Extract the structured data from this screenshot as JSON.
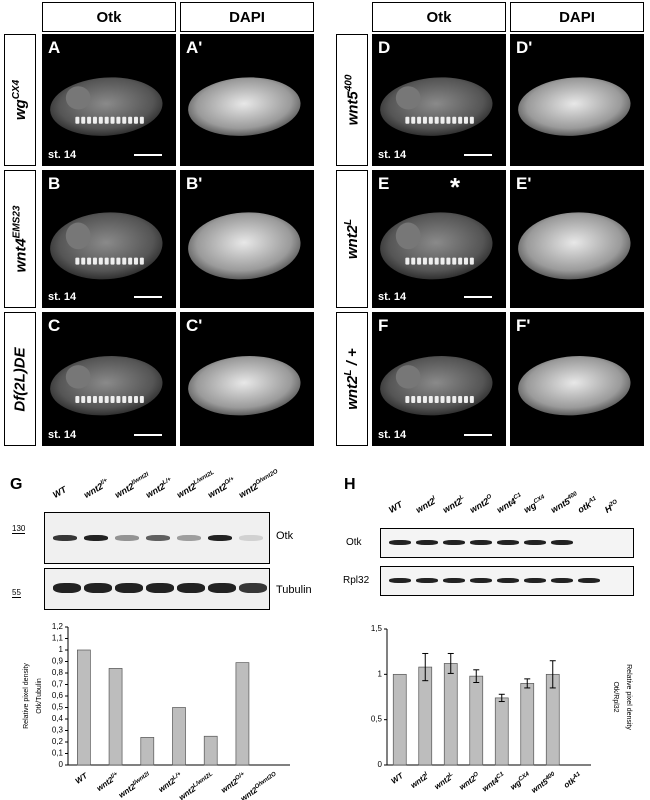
{
  "headers": {
    "otk": "Otk",
    "dapi": "DAPI"
  },
  "left_panels": [
    {
      "genotype": "wgCX4",
      "base": "wg",
      "sup": "CX4",
      "otk_label": "A",
      "dapi_label": "A'",
      "stage": "st. 14"
    },
    {
      "genotype": "wnt4EMS23",
      "base": "wnt4",
      "sup": "EMS23",
      "otk_label": "B",
      "dapi_label": "B'",
      "stage": "st. 14"
    },
    {
      "genotype": "Df(2L)DE",
      "base": "Df(2L)DE",
      "sup": "",
      "otk_label": "C",
      "dapi_label": "C'",
      "stage": "st. 14"
    }
  ],
  "right_panels": [
    {
      "genotype": "wnt5400",
      "base": "wnt5",
      "sup": "400",
      "otk_label": "D",
      "dapi_label": "D'",
      "stage": "st. 14"
    },
    {
      "genotype": "wnt2L",
      "base": "wnt2",
      "sup": "L",
      "otk_label": "E",
      "dapi_label": "E'",
      "stage": "st. 14",
      "asterisk": "*"
    },
    {
      "genotype": "wnt2L / +",
      "base": "wnt2",
      "sup": "L",
      "suffix": " / +",
      "otk_label": "F",
      "dapi_label": "F'",
      "stage": "st. 14"
    }
  ],
  "panel_G": {
    "letter": "G",
    "lanes": [
      "WT",
      "wnt2I/+",
      "wnt2I/wnt2I",
      "wnt2L/+",
      "wnt2L/wnt2L",
      "wnt2O/+",
      "wnt2O/wnt2O"
    ],
    "lane_parts": [
      [
        "WT",
        ""
      ],
      [
        "wnt2",
        "I/+"
      ],
      [
        "wnt2",
        "I/wnt2I"
      ],
      [
        "wnt2",
        "L/+"
      ],
      [
        "wnt2",
        "L/wnt2L"
      ],
      [
        "wnt2",
        "O/+"
      ],
      [
        "wnt2",
        "O/wnt2O"
      ]
    ],
    "marker_top": "130",
    "marker_bottom": "55",
    "blot_top_label": "Otk",
    "blot_bottom_label": "Tubulin",
    "otk_intensity": [
      0.9,
      1.0,
      0.45,
      0.7,
      0.4,
      1.0,
      0.05
    ]
  },
  "panel_H": {
    "letter": "H",
    "lanes": [
      "WT",
      "wnt2I",
      "wnt2L",
      "wnt2O",
      "wnt4C1",
      "wgCX4",
      "wnt5400",
      "otkA1",
      "H2O"
    ],
    "lane_parts": [
      [
        "WT",
        ""
      ],
      [
        "wnt2",
        "I"
      ],
      [
        "wnt2",
        "L"
      ],
      [
        "wnt2",
        "O"
      ],
      [
        "wnt4",
        "C1"
      ],
      [
        "wg",
        "CX4"
      ],
      [
        "wnt5",
        "400"
      ],
      [
        "otk",
        "A1"
      ],
      [
        "H",
        "2O"
      ]
    ],
    "blot_top_label": "Otk",
    "blot_bottom_label": "Rpl32",
    "otk_present": [
      1,
      1,
      1,
      1,
      1,
      1,
      1,
      0,
      0
    ],
    "rpl_present": [
      1,
      1,
      1,
      1,
      1,
      1,
      1,
      1,
      0
    ]
  },
  "chart_data": [
    {
      "type": "bar",
      "panel": "G",
      "categories": [
        "WT",
        "wnt2I/+",
        "wnt2I/wnt2I",
        "wnt2L/+",
        "wnt2L/wnt2L",
        "wnt2O/+",
        "wnt2O/wnt2O"
      ],
      "values": [
        1.0,
        0.84,
        0.24,
        0.5,
        0.25,
        0.89,
        0.0
      ],
      "ylabel": "Relative pixel density Otk/Tubulin",
      "ylim": [
        0,
        1.2
      ],
      "yticks": [
        "0",
        "0,1",
        "0,2",
        "0,3",
        "0,4",
        "0,5",
        "0,6",
        "0,7",
        "0,8",
        "0,9",
        "1",
        "1,1",
        "1,2"
      ],
      "ytick_values": [
        0,
        0.1,
        0.2,
        0.3,
        0.4,
        0.5,
        0.6,
        0.7,
        0.8,
        0.9,
        1.0,
        1.1,
        1.2
      ]
    },
    {
      "type": "bar",
      "panel": "H",
      "categories": [
        "WT",
        "wnt2I",
        "wnt2L",
        "wnt2O",
        "wnt4C1",
        "wgCX4",
        "wnt5400",
        "otkA1"
      ],
      "values": [
        1.0,
        1.08,
        1.12,
        0.98,
        0.74,
        0.9,
        1.0,
        0.0
      ],
      "errors": [
        0,
        0.15,
        0.11,
        0.07,
        0.04,
        0.05,
        0.15,
        0
      ],
      "ylabel": "Relative pixel density Otk/Rpl32",
      "ylim": [
        0,
        1.5
      ],
      "yticks": [
        "0",
        "0,5",
        "1",
        "1,5"
      ],
      "ytick_values": [
        0,
        0.5,
        1.0,
        1.5
      ]
    }
  ]
}
